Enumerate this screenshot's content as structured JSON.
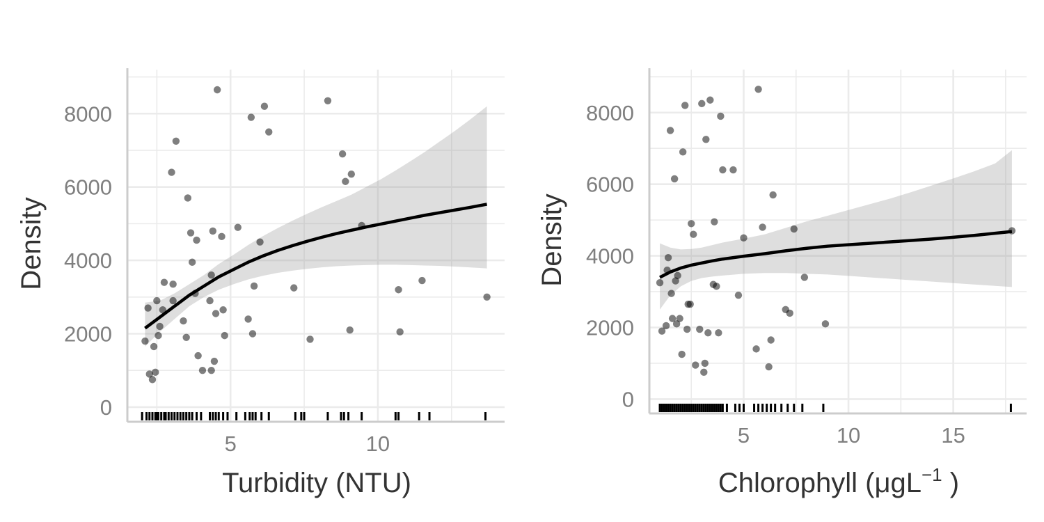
{
  "chart_data": [
    {
      "type": "scatter",
      "xlabel": "Turbidity (NTU)",
      "ylabel": "Density",
      "xlim": [
        1.5,
        14.3
      ],
      "ylim": [
        -400,
        9200
      ],
      "x_ticks": [
        5,
        10
      ],
      "y_ticks": [
        0,
        2000,
        4000,
        6000,
        8000
      ],
      "grid": true,
      "legend": "none",
      "series": [
        {
          "kind": "points",
          "x": [
            2.1,
            2.35,
            2.25,
            2.4,
            2.55,
            2.6,
            2.7,
            2.75,
            3.0,
            3.05,
            3.15,
            3.4,
            3.5,
            3.55,
            3.65,
            3.7,
            3.8,
            3.85,
            3.9,
            4.05,
            4.3,
            4.35,
            4.4,
            4.45,
            4.5,
            4.55,
            4.7,
            4.75,
            4.8,
            5.25,
            5.6,
            5.7,
            5.75,
            5.8,
            6.0,
            6.15,
            6.3,
            7.15,
            7.7,
            8.3,
            8.8,
            8.9,
            9.05,
            9.1,
            9.45,
            10.7,
            10.75,
            11.5,
            13.7,
            2.2,
            2.45,
            2.5,
            3.05,
            4.35
          ],
          "y": [
            1800,
            750,
            900,
            1650,
            1950,
            2200,
            2650,
            3400,
            6400,
            2900,
            7250,
            2350,
            1900,
            5700,
            4750,
            3950,
            3100,
            4550,
            1400,
            1000,
            2900,
            3600,
            4800,
            1250,
            2550,
            8650,
            4650,
            2650,
            1950,
            4900,
            2400,
            7900,
            2000,
            3300,
            4500,
            8200,
            7500,
            3250,
            1850,
            8350,
            6900,
            6150,
            2100,
            6350,
            4950,
            3200,
            2050,
            3450,
            3000,
            2700,
            950,
            2900,
            3350,
            1000
          ]
        },
        {
          "kind": "fit",
          "x": [
            2.1,
            2.6,
            3.1,
            3.6,
            4.1,
            4.6,
            5.1,
            5.6,
            6.1,
            6.6,
            7.1,
            7.6,
            8.1,
            8.6,
            9.1,
            9.6,
            10.1,
            10.6,
            11.1,
            11.6,
            12.1,
            12.6,
            13.1,
            13.7
          ],
          "y": [
            2150,
            2450,
            2750,
            3050,
            3300,
            3550,
            3750,
            3950,
            4120,
            4270,
            4400,
            4520,
            4630,
            4730,
            4820,
            4910,
            4990,
            5070,
            5150,
            5230,
            5300,
            5370,
            5440,
            5530
          ],
          "lower": [
            1650,
            2050,
            2400,
            2750,
            3000,
            3200,
            3350,
            3480,
            3580,
            3660,
            3720,
            3770,
            3810,
            3840,
            3860,
            3870,
            3880,
            3880,
            3870,
            3860,
            3850,
            3830,
            3810,
            3780
          ],
          "upper": [
            2850,
            2900,
            3100,
            3350,
            3600,
            3900,
            4150,
            4420,
            4660,
            4880,
            5080,
            5270,
            5450,
            5620,
            5790,
            6000,
            6210,
            6450,
            6700,
            6960,
            7240,
            7520,
            7820,
            8200
          ]
        },
        {
          "kind": "rug",
          "x": [
            2.0,
            2.15,
            2.25,
            2.35,
            2.45,
            2.5,
            2.55,
            2.65,
            2.75,
            2.8,
            2.9,
            3.0,
            3.1,
            3.2,
            3.3,
            3.4,
            3.5,
            3.6,
            3.7,
            3.85,
            4.0,
            4.3,
            4.4,
            4.5,
            4.6,
            4.75,
            4.9,
            5.2,
            5.5,
            5.65,
            5.75,
            5.85,
            6.05,
            6.3,
            7.2,
            7.4,
            7.5,
            8.3,
            8.75,
            8.85,
            9.0,
            9.45,
            10.6,
            10.7,
            11.4,
            11.75,
            13.65
          ]
        }
      ]
    },
    {
      "type": "scatter",
      "xlabel_main": "Chlorophyll (μgL",
      "xlabel_sup": "−1",
      "xlabel_tail": " )",
      "ylabel": "Density",
      "xlim": [
        0.5,
        18.5
      ],
      "ylim": [
        -400,
        9200
      ],
      "x_ticks": [
        5,
        10,
        15
      ],
      "y_ticks": [
        0,
        2000,
        4000,
        6000,
        8000
      ],
      "grid": true,
      "legend": "none",
      "series": [
        {
          "kind": "points",
          "x": [
            1.0,
            1.1,
            1.3,
            1.35,
            1.4,
            1.5,
            1.55,
            1.6,
            1.7,
            1.75,
            1.8,
            1.85,
            1.95,
            2.05,
            2.1,
            2.2,
            2.3,
            2.35,
            2.45,
            2.5,
            2.6,
            2.7,
            2.9,
            3.0,
            3.1,
            3.15,
            3.2,
            3.3,
            3.4,
            3.55,
            3.6,
            3.7,
            3.8,
            3.9,
            4.0,
            4.5,
            4.75,
            5.0,
            5.6,
            5.7,
            5.9,
            6.2,
            6.3,
            6.4,
            7.0,
            7.2,
            7.4,
            7.9,
            8.9,
            17.8
          ],
          "y": [
            3250,
            1900,
            2050,
            3600,
            3950,
            7500,
            2950,
            2250,
            6150,
            3300,
            2100,
            3450,
            2250,
            1250,
            6900,
            8200,
            1950,
            2650,
            2650,
            4900,
            4600,
            950,
            1950,
            8250,
            750,
            1000,
            7250,
            1850,
            8350,
            3200,
            4950,
            3150,
            1850,
            7900,
            6400,
            6400,
            2900,
            4500,
            1400,
            8650,
            4800,
            900,
            1650,
            5700,
            2500,
            2400,
            4750,
            3400,
            2100,
            4700
          ]
        },
        {
          "kind": "fit",
          "x": [
            1.0,
            1.5,
            2.0,
            2.5,
            3.0,
            3.5,
            4.0,
            5.0,
            6.0,
            7.0,
            8.0,
            9.0,
            10.0,
            11.0,
            12.0,
            13.0,
            14.0,
            15.0,
            16.0,
            17.0,
            17.8
          ],
          "y": [
            3400,
            3550,
            3660,
            3740,
            3800,
            3860,
            3910,
            3990,
            4060,
            4140,
            4210,
            4270,
            4310,
            4350,
            4390,
            4430,
            4470,
            4520,
            4570,
            4630,
            4680
          ],
          "lower": [
            2500,
            2900,
            3150,
            3300,
            3380,
            3420,
            3450,
            3500,
            3520,
            3520,
            3500,
            3480,
            3440,
            3400,
            3360,
            3320,
            3280,
            3240,
            3200,
            3160,
            3130
          ],
          "upper": [
            4350,
            4230,
            4180,
            4190,
            4230,
            4300,
            4370,
            4480,
            4600,
            4780,
            4960,
            5120,
            5280,
            5440,
            5600,
            5780,
            5970,
            6160,
            6360,
            6580,
            6950
          ]
        },
        {
          "kind": "rug",
          "x": [
            1.0,
            1.1,
            1.2,
            1.3,
            1.4,
            1.5,
            1.6,
            1.7,
            1.8,
            1.9,
            2.0,
            2.1,
            2.2,
            2.3,
            2.4,
            2.5,
            2.6,
            2.7,
            2.8,
            2.9,
            3.0,
            3.1,
            3.2,
            3.3,
            3.4,
            3.5,
            3.6,
            3.7,
            3.8,
            3.9,
            4.0,
            4.2,
            4.6,
            4.8,
            5.0,
            5.5,
            5.7,
            5.9,
            6.1,
            6.3,
            6.5,
            6.8,
            7.1,
            7.4,
            7.8,
            8.8,
            17.75
          ]
        }
      ]
    }
  ]
}
